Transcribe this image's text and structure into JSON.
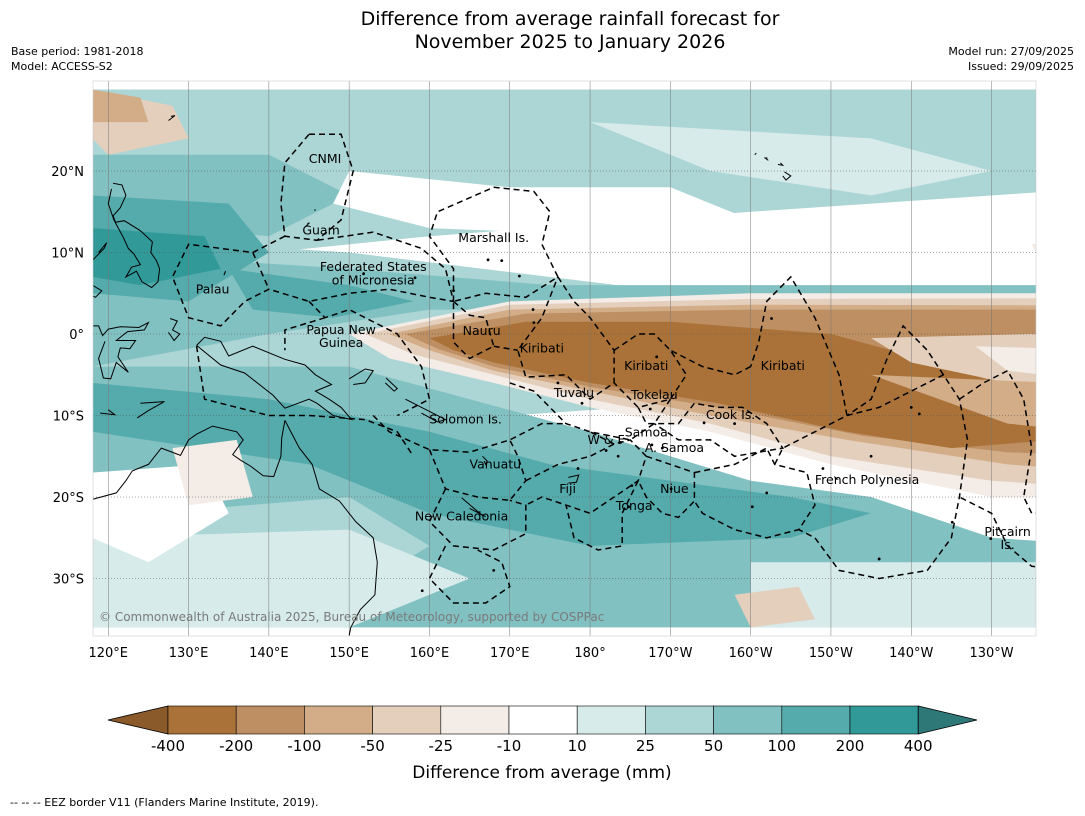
{
  "title_line1": "Difference from average rainfall forecast for",
  "title_line2": "November 2025 to January 2026",
  "meta_left": [
    "Base period: 1981-2018",
    "Model: ACCESS-S2"
  ],
  "meta_right": [
    "Model run: 27/09/2025",
    "Issued: 29/09/2025"
  ],
  "lat_ticks": [
    "20°N",
    "10°N",
    "0°",
    "10°S",
    "20°S",
    "30°S"
  ],
  "lon_ticks": [
    "120°E",
    "130°E",
    "140°E",
    "150°E",
    "160°E",
    "170°E",
    "180°",
    "170°W",
    "160°W",
    "150°W",
    "140°W",
    "130°W"
  ],
  "region_labels": [
    {
      "text": "CNMI",
      "lon": 147,
      "lat": 21
    },
    {
      "text": "Guam",
      "lon": 146.5,
      "lat": 12.2
    },
    {
      "text": "Marshall Is.",
      "lon": 168,
      "lat": 11.3
    },
    {
      "text": "Federated States",
      "lon": 153,
      "lat": 7.7
    },
    {
      "text": "of Micronesia",
      "lon": 153,
      "lat": 6.1
    },
    {
      "text": "Palau",
      "lon": 133,
      "lat": 5.0
    },
    {
      "text": "Papua New",
      "lon": 149,
      "lat": 0.0
    },
    {
      "text": "Guinea",
      "lon": 149,
      "lat": -1.6
    },
    {
      "text": "Nauru",
      "lon": 166.5,
      "lat": -0.1
    },
    {
      "text": "Kiribati",
      "lon": 174,
      "lat": -2.3
    },
    {
      "text": "Kiribati",
      "lon": -173,
      "lat": -4.4
    },
    {
      "text": "Kiribati",
      "lon": -156,
      "lat": -4.4
    },
    {
      "text": "Tuvalu",
      "lon": 178,
      "lat": -7.7
    },
    {
      "text": "Tokelau",
      "lon": -172,
      "lat": -8.0
    },
    {
      "text": "Cook Is.",
      "lon": -162.5,
      "lat": -10.4
    },
    {
      "text": "Solomon Is.",
      "lon": 164.5,
      "lat": -11.0
    },
    {
      "text": "Samoa",
      "lon": -173,
      "lat": -12.6
    },
    {
      "text": "W & F",
      "lon": -178,
      "lat": -13.5
    },
    {
      "text": "A. Samoa",
      "lon": -169.5,
      "lat": -14.5
    },
    {
      "text": "Vanuatu",
      "lon": 168.2,
      "lat": -16.5
    },
    {
      "text": "French Polynesia",
      "lon": -145.5,
      "lat": -18.4
    },
    {
      "text": "Fiji",
      "lon": 177.2,
      "lat": -19.5
    },
    {
      "text": "Niue",
      "lon": -169.5,
      "lat": -19.5
    },
    {
      "text": "Tonga",
      "lon": -174.5,
      "lat": -21.6
    },
    {
      "text": "New Caledonia",
      "lon": 164,
      "lat": -22.9
    },
    {
      "text": "Pitcairn",
      "lon": -128,
      "lat": -24.8
    },
    {
      "text": "Is.",
      "lon": -128,
      "lat": -26.4
    }
  ],
  "copyright": "© Commonwealth of Australia 2025, Bureau of Meteorology, supported by COSPPac",
  "colorbar": {
    "ticks": [
      "-400",
      "-200",
      "-100",
      "-50",
      "-25",
      "-10",
      "10",
      "25",
      "50",
      "100",
      "200",
      "400"
    ],
    "colors": [
      "#8b5a2b",
      "#aa7238",
      "#bd8f62",
      "#d2ad88",
      "#e4cfbc",
      "#f4ece6",
      "#ffffff",
      "#d6ebea",
      "#acd5d5",
      "#82c1c2",
      "#55aaab",
      "#319a99",
      "#2e7878"
    ],
    "label": "Difference from average (mm)"
  },
  "footer": "--  --  -- EEZ border V11 (Flanders Marine Institute, 2019)."
}
